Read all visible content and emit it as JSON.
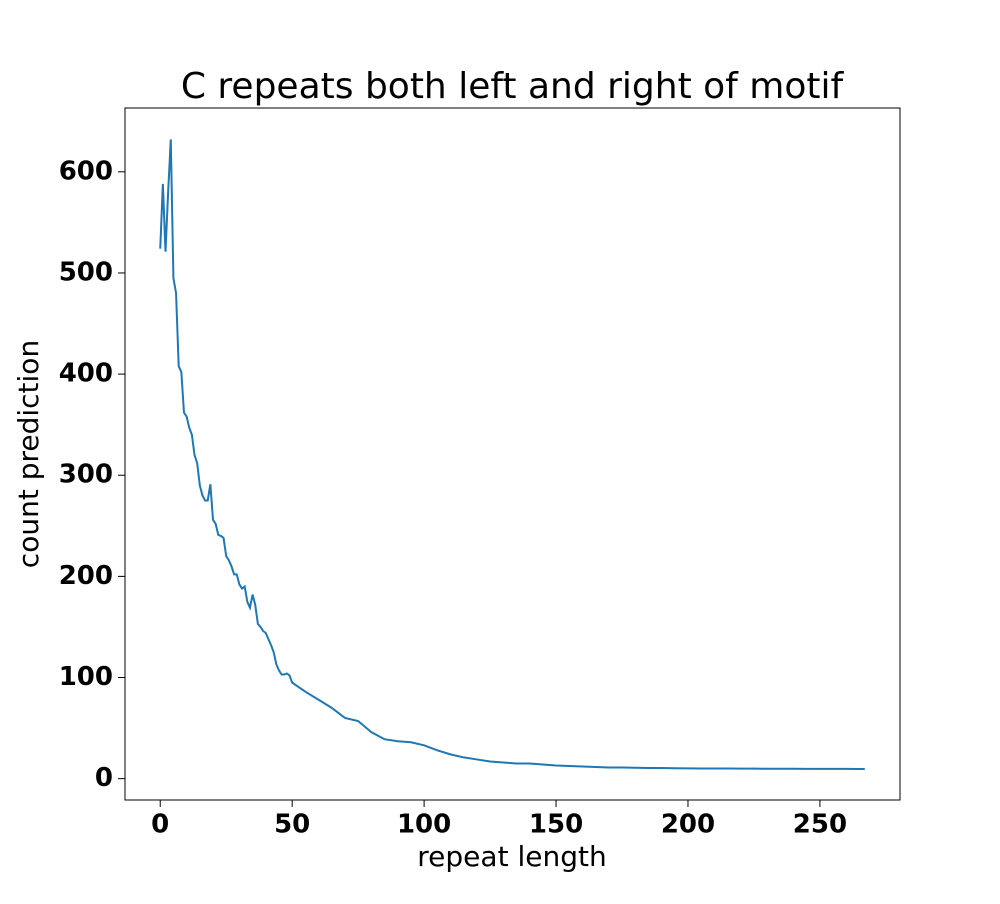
{
  "chart_data": {
    "type": "line",
    "title": "C repeats both left and right of motif",
    "xlabel": "repeat length",
    "ylabel": "count prediction",
    "x": [
      0,
      1,
      2,
      3,
      4,
      5,
      6,
      7,
      8,
      9,
      10,
      11,
      12,
      13,
      14,
      15,
      16,
      17,
      18,
      19,
      20,
      21,
      22,
      23,
      24,
      25,
      26,
      27,
      28,
      29,
      30,
      31,
      32,
      33,
      34,
      35,
      36,
      37,
      38,
      39,
      40,
      41,
      42,
      43,
      44,
      45,
      46,
      47,
      48,
      49,
      50,
      55,
      60,
      65,
      70,
      75,
      80,
      85,
      90,
      95,
      100,
      105,
      110,
      115,
      120,
      125,
      130,
      135,
      140,
      145,
      150,
      155,
      160,
      165,
      170,
      175,
      180,
      185,
      190,
      195,
      200,
      205,
      210,
      215,
      220,
      225,
      230,
      235,
      240,
      245,
      250,
      255,
      260,
      265,
      267
    ],
    "series": [
      {
        "color": "#1f77b4",
        "values": [
          524,
          588,
          521,
          580,
          632,
          495,
          480,
          408,
          402,
          362,
          358,
          347,
          340,
          320,
          312,
          290,
          280,
          275,
          275,
          291,
          256,
          252,
          241,
          240,
          238,
          220,
          216,
          210,
          202,
          202,
          192,
          188,
          190,
          175,
          169,
          182,
          172,
          153,
          150,
          146,
          144,
          138,
          132,
          125,
          113,
          107,
          103,
          103,
          104,
          102,
          95,
          86,
          78,
          70,
          60,
          57,
          46,
          39,
          37,
          36,
          33,
          28,
          24,
          21,
          19,
          17,
          16,
          15,
          15,
          14,
          13,
          12.5,
          12,
          11.5,
          11,
          11,
          10.8,
          10.6,
          10.5,
          10.3,
          10.2,
          10.1,
          10,
          10,
          9.9,
          9.9,
          9.8,
          9.8,
          9.8,
          9.7,
          9.7,
          9.7,
          9.7,
          9.6,
          9.6
        ]
      }
    ],
    "xlim": [
      -13.35,
      280.35
    ],
    "xticks": [
      0,
      50,
      100,
      150,
      200,
      250
    ],
    "ylim": [
      -21.1,
      663.1
    ],
    "yticks": [
      0,
      100,
      200,
      300,
      400,
      500,
      600
    ],
    "grid": false
  }
}
